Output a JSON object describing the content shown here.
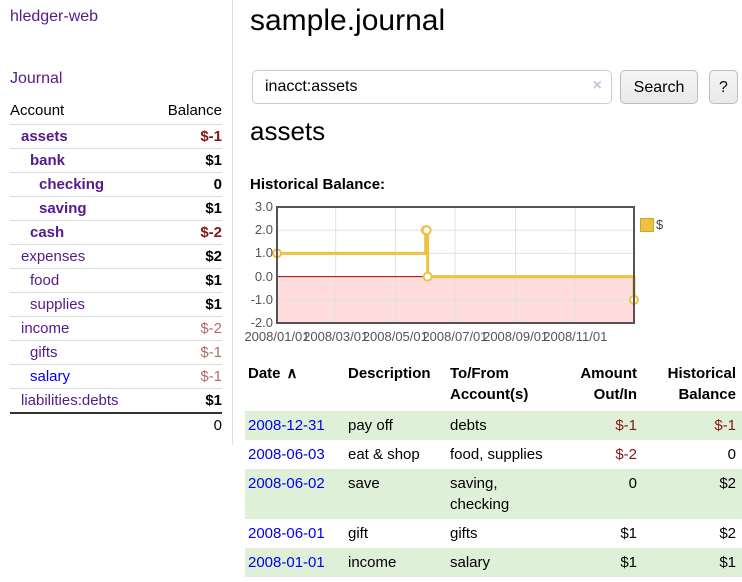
{
  "app": {
    "title": "hledger-web",
    "nav_journal": "Journal"
  },
  "colors": {
    "link_purple": "#551a8b",
    "link_blue": "#0000ee",
    "negative_strong": "#8b1414",
    "negative_soft": "#b36b6b",
    "row_green": "#dff0d8",
    "chart_line": "#edc240",
    "chart_negative_fill": "#ffdddd",
    "chart_zero_line": "#aa0000",
    "chart_border": "#545454"
  },
  "sidebar": {
    "col_account": "Account",
    "col_balance": "Balance",
    "accounts": [
      {
        "name": "assets",
        "balance": "$-1",
        "depth": 1,
        "bold": true,
        "neg": true
      },
      {
        "name": "bank",
        "balance": "$1",
        "depth": 2,
        "bold": true,
        "neg": false
      },
      {
        "name": "checking",
        "balance": "0",
        "depth": 3,
        "bold": true,
        "neg": false
      },
      {
        "name": "saving",
        "balance": "$1",
        "depth": 3,
        "bold": true,
        "neg": false
      },
      {
        "name": "cash",
        "balance": "$-2",
        "depth": 2,
        "bold": true,
        "neg": true
      },
      {
        "name": "expenses",
        "balance": "$2",
        "depth": 1,
        "bold": false,
        "neg": false
      },
      {
        "name": "food",
        "balance": "$1",
        "depth": 2,
        "bold": false,
        "neg": false
      },
      {
        "name": "supplies",
        "balance": "$1",
        "depth": 2,
        "bold": false,
        "neg": false
      },
      {
        "name": "income",
        "balance": "$-2",
        "depth": 1,
        "bold": false,
        "neg": true
      },
      {
        "name": "gifts",
        "balance": "$-1",
        "depth": 2,
        "bold": false,
        "neg": true
      },
      {
        "name": "salary",
        "balance": "$-1",
        "depth": 2,
        "bold": false,
        "neg": true,
        "unvisited": true
      },
      {
        "name": "liabilities:debts",
        "balance": "$1",
        "depth": 1,
        "bold": false,
        "neg": false
      }
    ],
    "total": "0"
  },
  "header": {
    "title": "sample.journal"
  },
  "search": {
    "query": "inacct:assets",
    "clear_icon": "×",
    "button": "Search",
    "help_button": "?"
  },
  "account_page": {
    "heading": "assets",
    "chart_label": "Historical Balance:"
  },
  "chart_data": {
    "type": "line",
    "step": true,
    "title": "Historical Balance",
    "series": [
      {
        "name": "$",
        "color": "#edc240",
        "points": [
          [
            "2008-01-01",
            1
          ],
          [
            "2008-06-01",
            2
          ],
          [
            "2008-06-02",
            2
          ],
          [
            "2008-06-03",
            0
          ],
          [
            "2008-12-31",
            -1
          ]
        ]
      }
    ],
    "x_range": [
      "2008-01-01",
      "2008-12-31"
    ],
    "ylim": [
      -2,
      3
    ],
    "y_ticks": [
      "3.0",
      "2.0",
      "1.0",
      "0.0",
      "-1.0",
      "-2.0"
    ],
    "x_ticks": [
      "2008/01/01",
      "2008/03/01",
      "2008/05/01",
      "2008/07/01",
      "2008/09/01",
      "2008/11/01"
    ],
    "grid": true,
    "legend_position": "top-right",
    "negative_region_color": "#ffdddd",
    "zero_line_color": "#aa0000",
    "border_color": "#545454"
  },
  "register": {
    "headers": {
      "date": "Date",
      "sort_icon": "∧",
      "description": "Description",
      "accounts": "To/From Account(s)",
      "amount": "Amount Out/In",
      "balance": "Historical Balance"
    },
    "rows": [
      {
        "date": "2008-12-31",
        "description": "pay off",
        "accounts": "debts",
        "amount": "$-1",
        "amount_neg": true,
        "balance": "$-1",
        "balance_neg": true,
        "shaded": true
      },
      {
        "date": "2008-06-03",
        "description": "eat & shop",
        "accounts": "food, supplies",
        "amount": "$-2",
        "amount_neg": true,
        "balance": "0",
        "balance_neg": false,
        "shaded": false
      },
      {
        "date": "2008-06-02",
        "description": "save",
        "accounts": "saving, checking",
        "amount": "0",
        "amount_neg": false,
        "balance": "$2",
        "balance_neg": false,
        "shaded": true
      },
      {
        "date": "2008-06-01",
        "description": "gift",
        "accounts": "gifts",
        "amount": "$1",
        "amount_neg": false,
        "balance": "$2",
        "balance_neg": false,
        "shaded": false
      },
      {
        "date": "2008-01-01",
        "description": "income",
        "accounts": "salary",
        "amount": "$1",
        "amount_neg": false,
        "balance": "$1",
        "balance_neg": false,
        "shaded": true
      }
    ]
  }
}
